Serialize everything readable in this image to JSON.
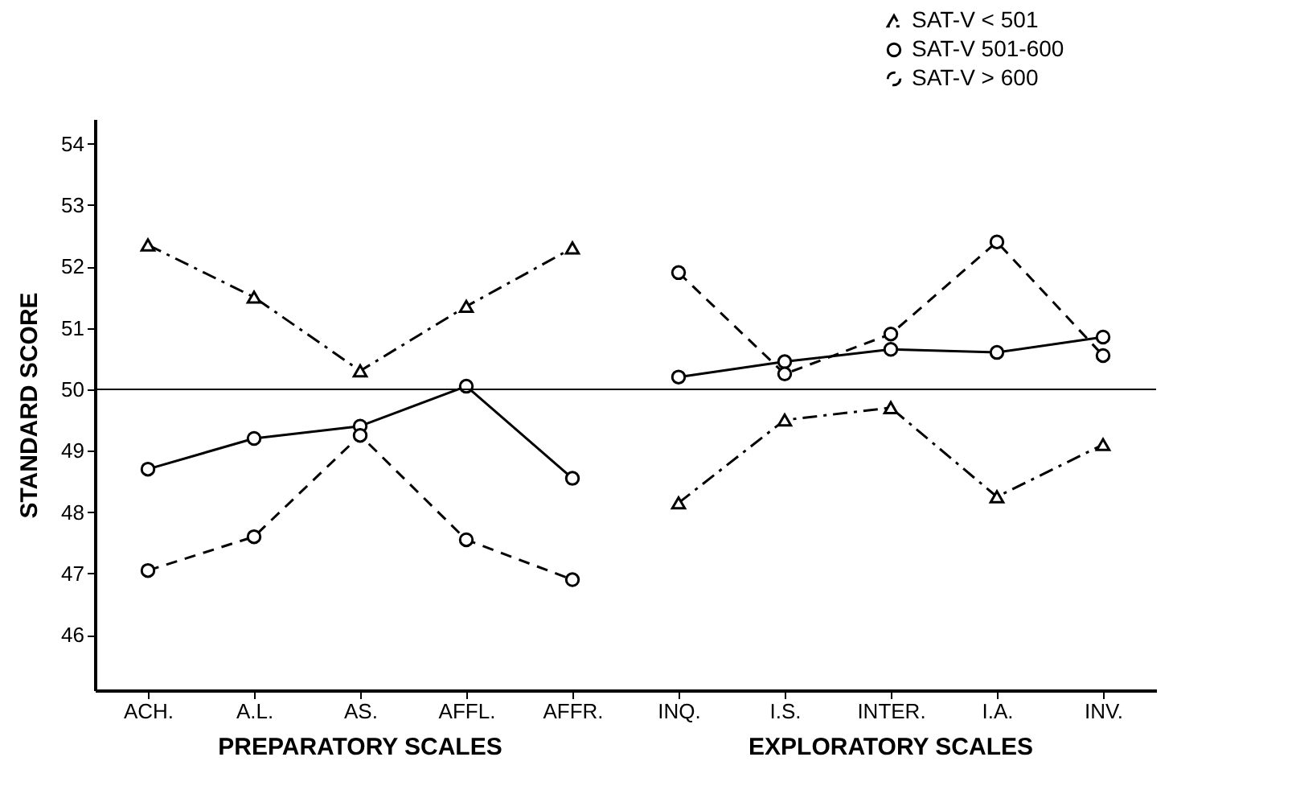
{
  "chart_data": {
    "type": "line",
    "ylabel": "STANDARD SCORE",
    "annotations": [
      "PREPARATORY SCALES",
      "EXPLORATORY SCALES"
    ],
    "categories": [
      "ACH.",
      "A.L.",
      "AS.",
      "AFFL.",
      "AFFR.",
      "INQ.",
      "I.S.",
      "INTER.",
      "I.A.",
      "INV."
    ],
    "ylim": [
      45.1,
      54.4
    ],
    "yticks": [
      46,
      47,
      48,
      49,
      50,
      51,
      52,
      53,
      54
    ],
    "legend": "top right",
    "ref_lines": [
      {
        "axis": "y",
        "value": 50,
        "color": "#000000"
      }
    ],
    "series": [
      {
        "name": "SAT-V < 501",
        "color": "#000000",
        "marker": "triangle",
        "line_style": "dotted",
        "values": [
          52.35,
          51.5,
          50.3,
          51.35,
          52.3,
          null,
          null,
          null,
          null,
          null
        ]
      },
      {
        "name": "SAT-V  501-600",
        "color": "#000000",
        "marker": "circle",
        "line_style": "solid",
        "values": [
          48.7,
          49.2,
          49.4,
          50.05,
          48.55,
          null,
          null,
          null,
          null,
          null
        ]
      },
      {
        "name": "SAT-V > 600",
        "color": "#000000",
        "marker": "circle",
        "line_style": "dashed",
        "values": [
          47.05,
          47.6,
          49.25,
          47.55,
          46.9,
          null,
          null,
          null,
          null,
          null
        ]
      },
      {
        "color": "#000000",
        "marker": "triangle",
        "line_style": "dotted",
        "values": [
          null,
          null,
          null,
          null,
          null,
          48.15,
          49.5,
          49.7,
          48.25,
          49.1
        ]
      },
      {
        "color": "#000000",
        "marker": "circle",
        "line_style": "solid",
        "values": [
          null,
          null,
          null,
          null,
          null,
          50.2,
          50.45,
          50.65,
          50.6,
          50.85
        ]
      },
      {
        "color": "#000000",
        "marker": "circle",
        "line_style": "dashed",
        "values": [
          null,
          null,
          null,
          null,
          null,
          51.9,
          50.25,
          50.9,
          52.4,
          50.55
        ]
      }
    ]
  }
}
